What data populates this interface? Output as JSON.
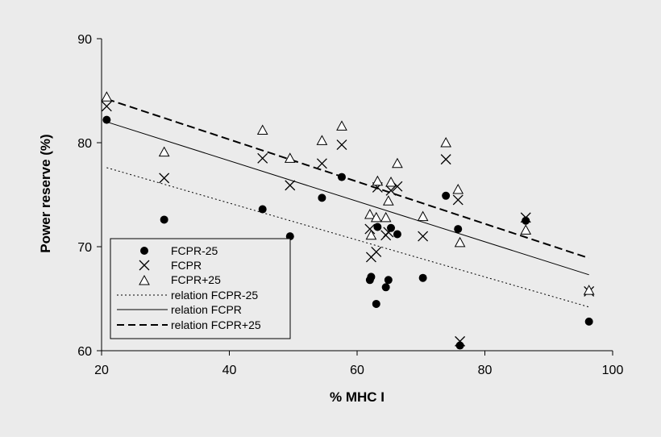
{
  "colors": {
    "background": "#ebebeb",
    "ink": "#000000",
    "legend_bg": "#ebebeb"
  },
  "chart_data": {
    "type": "scatter",
    "title": "",
    "xlabel": "% MHC I",
    "ylabel": "Power reserve (%)",
    "xlim": [
      20,
      100
    ],
    "ylim": [
      60,
      90
    ],
    "xticks": [
      20,
      40,
      60,
      80,
      100
    ],
    "yticks": [
      60,
      70,
      80,
      90
    ],
    "legend_position": "bottom-left",
    "series": [
      {
        "name": "FCPR-25",
        "marker": "dot",
        "points": [
          [
            20.8,
            82.2
          ],
          [
            29.8,
            72.6
          ],
          [
            45.2,
            73.6
          ],
          [
            49.5,
            71.0
          ],
          [
            54.5,
            74.7
          ],
          [
            57.6,
            76.7
          ],
          [
            62.0,
            66.8
          ],
          [
            62.2,
            67.1
          ],
          [
            63.0,
            64.5
          ],
          [
            63.2,
            71.9
          ],
          [
            64.5,
            66.1
          ],
          [
            64.9,
            66.8
          ],
          [
            65.3,
            71.8
          ],
          [
            66.3,
            71.2
          ],
          [
            70.3,
            67.0
          ],
          [
            73.9,
            74.9
          ],
          [
            75.8,
            71.7
          ],
          [
            76.1,
            60.5
          ],
          [
            86.4,
            72.5
          ],
          [
            96.3,
            62.8
          ]
        ]
      },
      {
        "name": "FCPR",
        "marker": "cross",
        "points": [
          [
            20.8,
            83.5
          ],
          [
            29.8,
            76.6
          ],
          [
            45.2,
            78.5
          ],
          [
            49.5,
            75.9
          ],
          [
            54.5,
            78.0
          ],
          [
            57.6,
            79.8
          ],
          [
            62.0,
            71.7
          ],
          [
            62.2,
            69.0
          ],
          [
            63.0,
            69.5
          ],
          [
            63.2,
            75.7
          ],
          [
            64.5,
            71.1
          ],
          [
            64.9,
            71.4
          ],
          [
            65.3,
            75.4
          ],
          [
            66.3,
            75.8
          ],
          [
            70.3,
            71.0
          ],
          [
            73.9,
            78.4
          ],
          [
            75.8,
            74.5
          ],
          [
            76.1,
            60.9
          ],
          [
            86.4,
            72.8
          ],
          [
            96.3,
            65.7
          ]
        ]
      },
      {
        "name": "FCPR+25",
        "marker": "triangle",
        "points": [
          [
            20.8,
            84.4
          ],
          [
            29.8,
            79.1
          ],
          [
            45.2,
            81.2
          ],
          [
            49.5,
            78.5
          ],
          [
            54.5,
            80.2
          ],
          [
            57.6,
            81.6
          ],
          [
            62.0,
            73.1
          ],
          [
            62.2,
            71.1
          ],
          [
            63.0,
            72.8
          ],
          [
            63.2,
            76.3
          ],
          [
            64.5,
            72.8
          ],
          [
            64.9,
            74.4
          ],
          [
            65.3,
            76.2
          ],
          [
            66.3,
            78.0
          ],
          [
            70.3,
            72.9
          ],
          [
            73.9,
            80.0
          ],
          [
            75.8,
            75.5
          ],
          [
            76.1,
            70.4
          ],
          [
            86.4,
            71.6
          ],
          [
            96.3,
            65.8
          ]
        ]
      }
    ],
    "relations": [
      {
        "name": "relation FCPR-25",
        "style": "dotted",
        "x": [
          20.8,
          96.3
        ],
        "y": [
          77.6,
          64.2
        ]
      },
      {
        "name": "relation FCPR",
        "style": "solid",
        "x": [
          20.8,
          96.3
        ],
        "y": [
          82.0,
          67.3
        ]
      },
      {
        "name": "relation FCPR+25",
        "style": "dashed",
        "x": [
          20.8,
          96.3
        ],
        "y": [
          84.2,
          68.9
        ]
      }
    ],
    "legend": [
      "FCPR-25",
      "FCPR",
      "FCPR+25",
      "relation FCPR-25",
      "relation FCPR",
      "relation FCPR+25"
    ]
  }
}
